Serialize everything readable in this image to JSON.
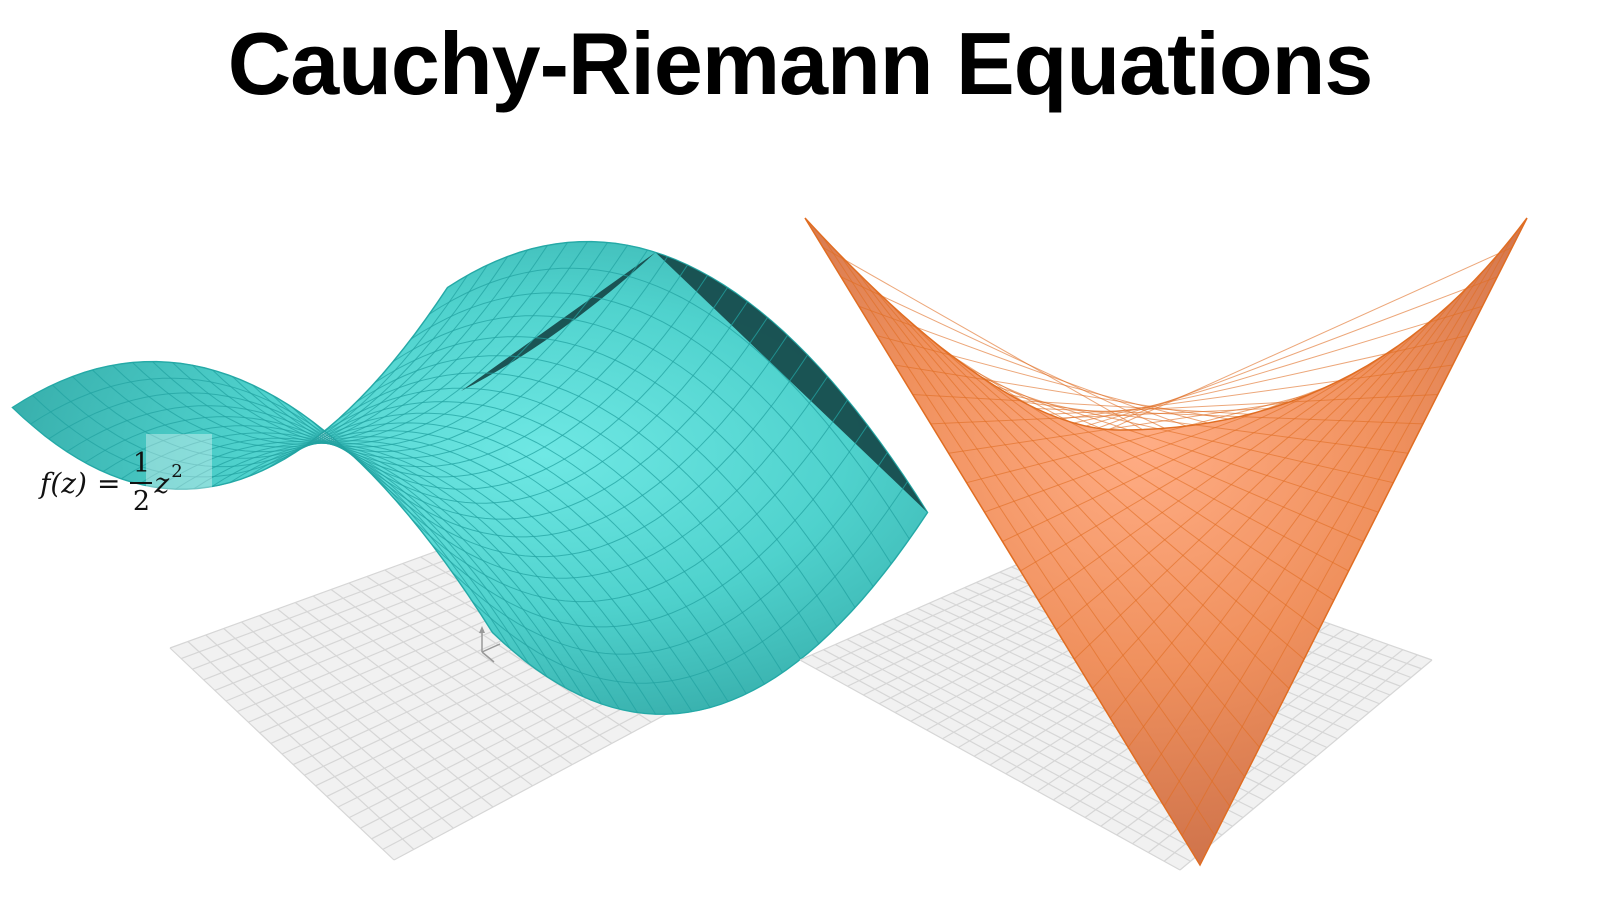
{
  "page": {
    "title": "Cauchy-Riemann Equations"
  },
  "formula": {
    "lhs": "f(z)",
    "equals": "=",
    "numerator": "1",
    "denominator": "2",
    "variable": "z",
    "exponent": "2"
  },
  "plots": {
    "left": {
      "surface_function": "re((1/2) z^2)",
      "surface_color": "#3cc7c3",
      "surface_underside_color": "#16494a",
      "mesh_color": "#23a3a1",
      "floor_color": "#e7e7e7"
    },
    "right": {
      "surface_function": "|(1/2) z^2| (modulus, negated)",
      "surface_color": "#ef8f5c",
      "mesh_color": "#e06d22",
      "floor_color": "#e7e7e7"
    }
  },
  "icons": {
    "axes": "axes-tripod-icon"
  }
}
